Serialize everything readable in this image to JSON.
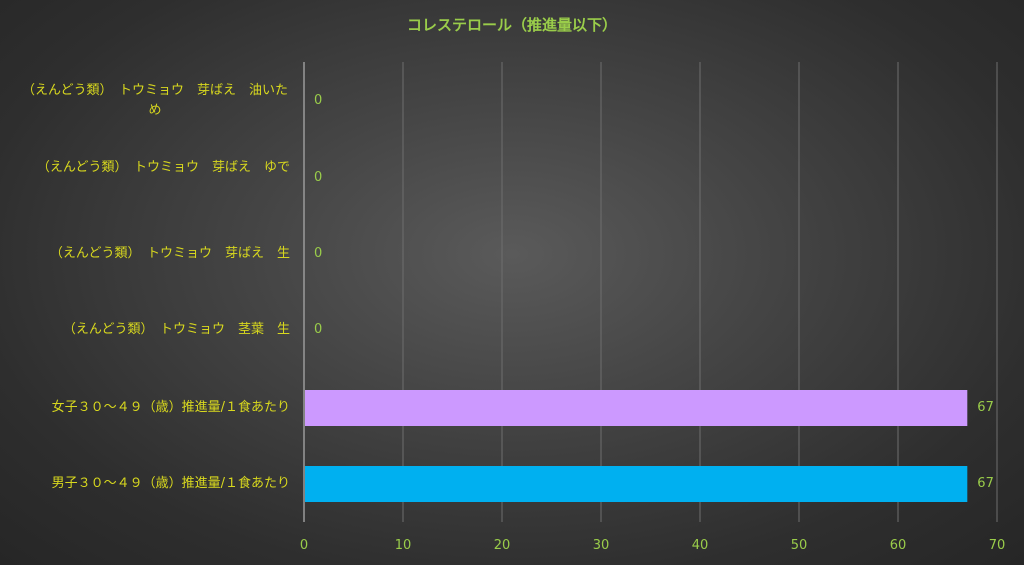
{
  "chart_data": {
    "type": "bar",
    "orientation": "horizontal",
    "title": "コレステロール（推進量以下）",
    "categories": [
      "（えんどう類）　トウミョウ　芽ばえ　油いため",
      "（えんどう類）　トウミョウ　芽ばえ　ゆで",
      "（えんどう類）　トウミョウ　芽ばえ　生",
      "（えんどう類）　トウミョウ　茎葉　生",
      "女子３０～４９（歳）推進量/１食あたり",
      "男子３０～４９（歳）推進量/１食あたり"
    ],
    "values": [
      0,
      0,
      0,
      0,
      67,
      67
    ],
    "value_labels": [
      "0",
      "0",
      "0",
      "0",
      "67",
      "67"
    ],
    "bar_colors": [
      "#cc99ff",
      "#cc99ff",
      "#cc99ff",
      "#cc99ff",
      "#cc99ff",
      "#00b0f0"
    ],
    "xlim": [
      0,
      70
    ],
    "xticks": [
      0,
      10,
      20,
      30,
      40,
      50,
      60,
      70
    ],
    "xtick_labels": [
      "0",
      "10",
      "20",
      "30",
      "40",
      "50",
      "60",
      "70"
    ],
    "grid": true,
    "legend": "none",
    "xlabel": "",
    "ylabel": ""
  }
}
